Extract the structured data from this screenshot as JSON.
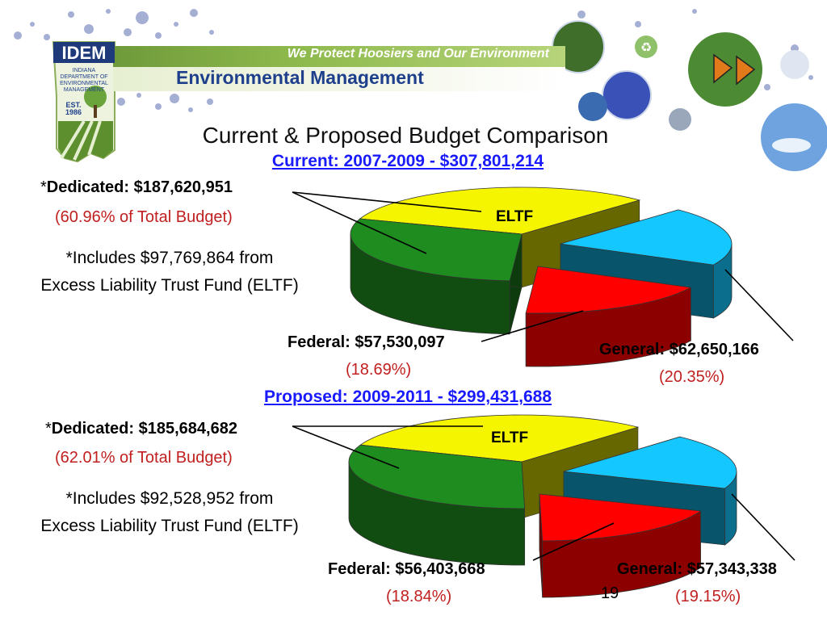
{
  "header": {
    "logo": "IDEM",
    "logo_sub": "INDIANA DEPARTMENT OF ENVIRONMENTAL MANAGEMENT",
    "logo_est": "EST. 1986",
    "tagline": "We Protect Hoosiers and Our Environment",
    "agency": "Environmental Management"
  },
  "slide": {
    "title": "Current & Proposed Budget Comparison",
    "page_number": "19"
  },
  "colors": {
    "dedicated": "#1e8c1e",
    "eltf": "#f5f500",
    "general": "#14c8ff",
    "federal": "#ff0000",
    "pct_text": "#c0201f",
    "link": "#1a1aff"
  },
  "chart_data": [
    {
      "type": "pie",
      "title": "Current: 2007-2009 - $307,801,214",
      "slices": [
        {
          "name": "Dedicated",
          "value": 187620951,
          "percent": 60.96
        },
        {
          "name": "General",
          "value": 62650166,
          "percent": 20.35
        },
        {
          "name": "Federal",
          "value": 57530097,
          "percent": 18.69
        }
      ],
      "sub_slice": {
        "name": "ELTF",
        "value": 97769864
      },
      "labels": {
        "dedicated_value": "Dedicated: $187,620,951",
        "dedicated_pct": "(60.96% of Total Budget)",
        "note_line1": "*Includes $97,769,864 from",
        "note_line2": "Excess Liability Trust Fund (ELTF)",
        "federal_value": "Federal: $57,530,097",
        "federal_pct": "(18.69%)",
        "general_value": "General: $62,650,166",
        "general_pct": "(20.35%)",
        "eltf": "ELTF"
      }
    },
    {
      "type": "pie",
      "title": "Proposed: 2009-2011 - $299,431,688",
      "slices": [
        {
          "name": "Dedicated",
          "value": 185684682,
          "percent": 62.01
        },
        {
          "name": "General",
          "value": 57343338,
          "percent": 19.15
        },
        {
          "name": "Federal",
          "value": 56403668,
          "percent": 18.84
        }
      ],
      "sub_slice": {
        "name": "ELTF",
        "value": 92528952
      },
      "labels": {
        "dedicated_value": "Dedicated: $185,684,682",
        "dedicated_pct": "(62.01% of Total Budget)",
        "note_line1": "*Includes $92,528,952 from",
        "note_line2": "Excess Liability Trust Fund (ELTF)",
        "federal_value": "Federal: $56,403,668",
        "federal_pct": "(18.84%)",
        "general_value": "General: $57,343,338",
        "general_pct": "(19.15%)",
        "eltf": "ELTF"
      }
    }
  ]
}
